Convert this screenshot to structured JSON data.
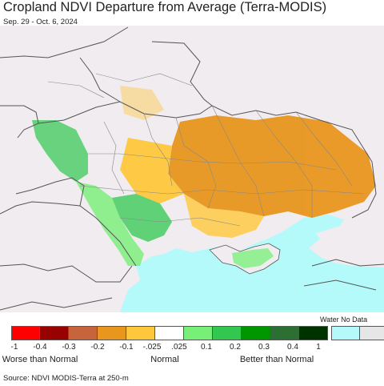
{
  "title": "Cropland NDVI Departure from Average (Terra-MODIS)",
  "subtitle": "Sep. 29 - Oct. 6, 2024",
  "legend": {
    "nodata_label": "Water No Data",
    "colors": [
      "#ff0000",
      "#990000",
      "#c8643c",
      "#e8961e",
      "#ffc83c",
      "#ffffff",
      "#78f078",
      "#32c850",
      "#009600",
      "#2d6e32",
      "#003200"
    ],
    "extra_colors": [
      "#b4fafa",
      "#e6e6e6"
    ],
    "ticks": [
      "-1",
      "-0.4",
      "-0.3",
      "-0.2",
      "-0.1",
      "-.025",
      ".025",
      "0.1",
      "0.2",
      "0.3",
      "0.4",
      "1"
    ],
    "categories": [
      "Worse than Normal",
      "Normal",
      "Better than Normal"
    ]
  },
  "source": "Source: NDVI MODIS-Terra at 250-m",
  "colors": {
    "land": "#f0ecf0",
    "sea": "#b4fafa",
    "border": "#555555",
    "admin": "#888888",
    "dry": "#e8961e",
    "mild_dry": "#ffc83c",
    "wet": "#32c850",
    "light_wet": "#78f078"
  }
}
